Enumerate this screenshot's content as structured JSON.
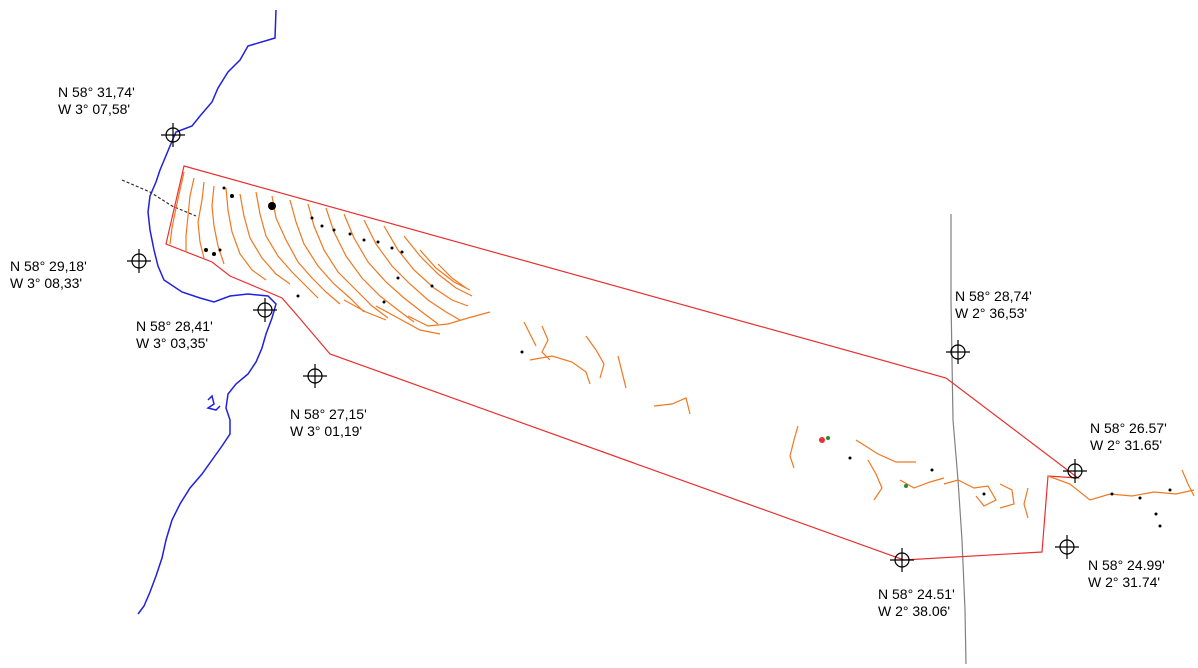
{
  "colors": {
    "coastline": "#2020e0",
    "survey_boundary": "#e83030",
    "contours": "#f07820",
    "cable": "#808080",
    "markers": "#000000",
    "background": "#ffffff"
  },
  "markers": [
    {
      "id": "nw",
      "lat": "N 58° 31,74'",
      "lon": "W 3° 07,58'"
    },
    {
      "id": "w",
      "lat": "N 58° 29,18'",
      "lon": "W 3° 08,33'"
    },
    {
      "id": "sw-coast",
      "lat": "N 58° 28,41'",
      "lon": "W 3° 03,35'"
    },
    {
      "id": "s-coast",
      "lat": "N 58° 27,15'",
      "lon": "W 3° 01,19'"
    },
    {
      "id": "ne",
      "lat": "N 58° 28,74'",
      "lon": "W 2° 36,53'"
    },
    {
      "id": "e",
      "lat": "N 58° 26.57'",
      "lon": "W 2° 31.65'"
    },
    {
      "id": "se",
      "lat": "N 58° 24.99'",
      "lon": "W 2° 31.74'"
    },
    {
      "id": "s",
      "lat": "N 58° 24.51'",
      "lon": "W 2° 38.06'"
    }
  ]
}
